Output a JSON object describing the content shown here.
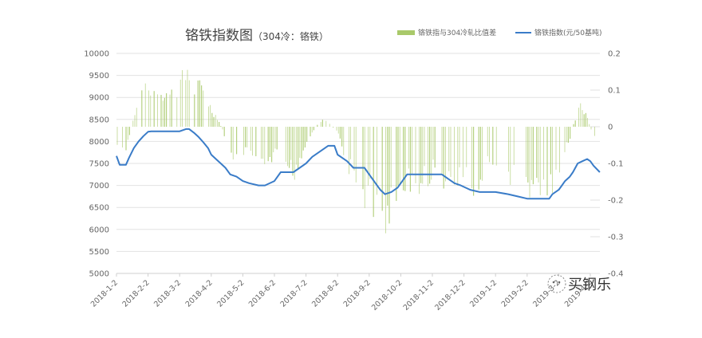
{
  "chart_data": {
    "type": "bar+line",
    "title": "铬铁指数图",
    "subtitle": "（304冷：铬铁）",
    "legend": [
      {
        "name": "铬铁指与304冷轧比值差",
        "type": "bar",
        "color": "#a9c96a",
        "axis": "right"
      },
      {
        "name": "铬铁指数(元/50基吨)",
        "type": "line",
        "color": "#3a7cc8",
        "axis": "left"
      }
    ],
    "left_axis": {
      "min": 5000,
      "max": 10000,
      "step": 500,
      "ticks": [
        "10000",
        "9500",
        "9000",
        "8500",
        "8000",
        "7500",
        "7000",
        "6500",
        "6000",
        "5500",
        "5000"
      ]
    },
    "right_axis": {
      "min": -0.4,
      "max": 0.2,
      "step": 0.1,
      "ticks": [
        "0.2",
        "0.1",
        "0",
        "-0.1",
        "-0.2",
        "-0.3",
        "-0.4"
      ]
    },
    "x_ticks": [
      "2018-1-2",
      "2018-2-2",
      "2018-3-2",
      "2018-4-2",
      "2018-5-2",
      "2018-6-2",
      "2018-7-2",
      "2018-8-2",
      "2018-9-2",
      "2018-10-2",
      "2018-11-2",
      "2018-12-2",
      "2019-1-2",
      "2019-2-2",
      "2019-3-2",
      "2019-4-2"
    ],
    "grid": true,
    "legend_position": "top-right",
    "series": [
      {
        "name": "铬铁指数(元/50基吨)",
        "x_month_index": [
          0,
          0.1,
          0.3,
          0.4,
          0.55,
          0.7,
          0.85,
          1.0,
          1.1,
          1.3,
          2.0,
          2.2,
          2.3,
          2.45,
          2.6,
          2.75,
          2.9,
          3.0,
          3.15,
          3.3,
          3.45,
          3.6,
          3.8,
          4.0,
          4.2,
          4.5,
          4.7,
          5.0,
          5.2,
          5.6,
          6.0,
          6.2,
          6.5,
          6.7,
          6.9,
          7.0,
          7.3,
          7.5,
          7.7,
          7.85,
          8.0,
          8.2,
          8.35,
          8.5,
          8.7,
          8.9,
          9.0,
          9.2,
          10.0,
          10.3,
          10.5,
          10.7,
          10.9,
          11.2,
          11.5,
          12.0,
          12.4,
          12.7,
          13.0,
          13.7,
          13.8,
          14.0,
          14.1,
          14.2,
          14.35,
          14.45,
          14.6,
          14.75,
          14.9,
          15.0,
          15.1,
          15.3
        ],
        "values": [
          7670,
          7470,
          7470,
          7630,
          7850,
          8000,
          8120,
          8220,
          8230,
          8230,
          8230,
          8280,
          8280,
          8200,
          8100,
          7980,
          7850,
          7700,
          7600,
          7500,
          7400,
          7250,
          7200,
          7100,
          7050,
          7000,
          7000,
          7100,
          7300,
          7300,
          7500,
          7650,
          7800,
          7900,
          7900,
          7700,
          7550,
          7400,
          7400,
          7400,
          7250,
          7050,
          6900,
          6800,
          6850,
          6950,
          7050,
          7250,
          7250,
          7250,
          7150,
          7050,
          7000,
          6900,
          6850,
          6850,
          6800,
          6750,
          6700,
          6700,
          6800,
          6900,
          7000,
          7100,
          7200,
          7300,
          7500,
          7550,
          7600,
          7550,
          7450,
          7300
        ]
      },
      {
        "name": "铬铁指与304冷轧比值差",
        "note": "approximate envelope of daily bars (right axis)",
        "x_month_index": [
          0,
          0.3,
          0.6,
          0.9,
          1.2,
          1.5,
          1.8,
          2.1,
          2.3,
          2.5,
          2.8,
          3.0,
          3.2,
          3.5,
          3.8,
          4.0,
          4.3,
          4.6,
          5.0,
          5.3,
          5.6,
          6.0,
          6.3,
          6.6,
          7.0,
          7.3,
          7.6,
          8.0,
          8.3,
          8.5,
          8.7,
          9.0,
          9.3,
          9.6,
          10.0,
          10.3,
          10.6,
          11.0,
          11.3,
          11.6,
          12.0,
          12.3,
          12.6,
          13.0,
          13.3,
          13.5,
          13.7,
          14.0,
          14.3,
          14.5,
          14.7,
          14.9,
          15.1,
          15.3
        ],
        "values": [
          -0.06,
          -0.08,
          0.06,
          0.12,
          0.13,
          0.12,
          0.12,
          0.16,
          0.17,
          0.14,
          0.12,
          0.06,
          0.03,
          -0.05,
          -0.12,
          -0.08,
          -0.12,
          -0.15,
          -0.1,
          -0.12,
          -0.16,
          -0.06,
          0.0,
          0.03,
          -0.02,
          -0.12,
          -0.2,
          -0.25,
          -0.28,
          -0.31,
          -0.28,
          -0.22,
          -0.18,
          -0.2,
          -0.15,
          -0.18,
          -0.2,
          -0.18,
          -0.2,
          -0.15,
          -0.12,
          -0.14,
          -0.18,
          -0.2,
          -0.21,
          -0.19,
          -0.23,
          -0.15,
          -0.06,
          0.02,
          0.07,
          0.04,
          -0.04,
          -0.03
        ]
      }
    ]
  },
  "watermark": {
    "icon": "wechat-icon",
    "text": "买钢乐"
  }
}
